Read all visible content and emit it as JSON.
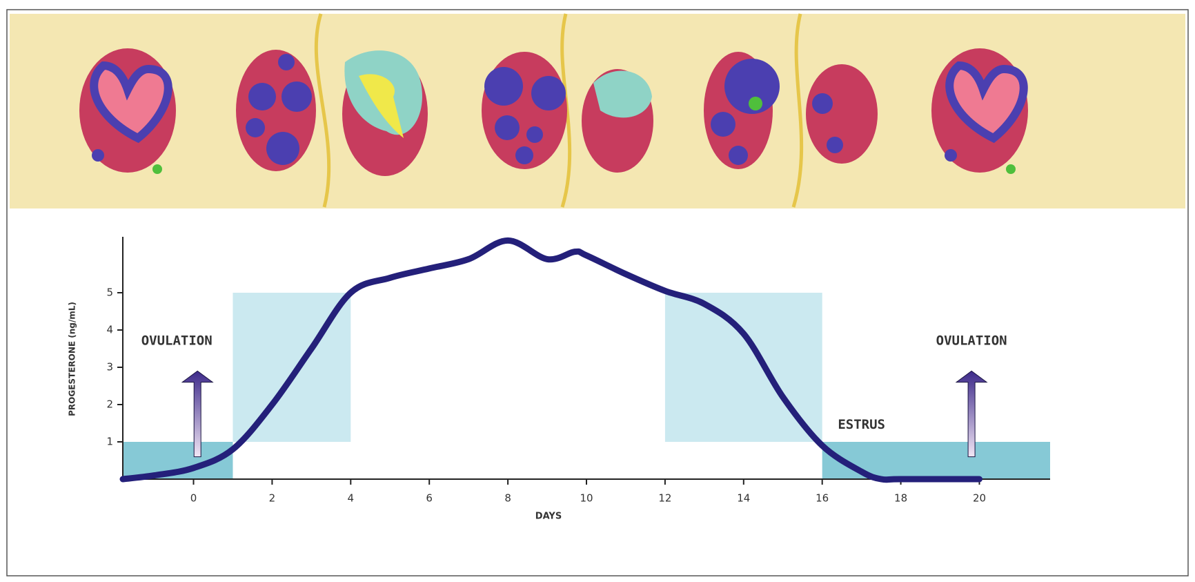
{
  "chart_data": {
    "type": "line",
    "x_label": "DAYS",
    "y_label": "PROGESTERONE (ng/mL)",
    "x": [
      -1.8,
      -1,
      0,
      1,
      2,
      3,
      4,
      5,
      6,
      7,
      8,
      9,
      9.7,
      10,
      11,
      12,
      13,
      14,
      15,
      16,
      17,
      17.5,
      18,
      20
    ],
    "series": [
      {
        "color": "#24207a",
        "values": [
          0,
          0.1,
          0.3,
          0.8,
          2,
          3.5,
          5,
          5.4,
          5.65,
          5.9,
          6.4,
          5.9,
          6.1,
          6,
          5.5,
          5.05,
          4.7,
          3.9,
          2.2,
          0.9,
          0.2,
          0,
          0,
          0
        ]
      }
    ],
    "xlim": [
      -1.8,
      21.8
    ],
    "ylim": [
      0,
      6.5
    ],
    "xticks": [
      0,
      2,
      4,
      6,
      8,
      10,
      12,
      14,
      16,
      18,
      20
    ],
    "yticks": [
      1,
      2,
      3,
      4,
      5
    ],
    "regions": [
      {
        "x": [
          -1.8,
          1
        ],
        "y": [
          0,
          1
        ],
        "color": "#86c9d6"
      },
      {
        "x": [
          1,
          4
        ],
        "y": [
          1,
          5
        ],
        "color": "#cbe9f0"
      },
      {
        "x": [
          12,
          16
        ],
        "y": [
          1,
          5
        ],
        "color": "#cbe9f0"
      },
      {
        "x": [
          16,
          21.8
        ],
        "y": [
          0,
          1
        ],
        "color": "#86c9d6"
      }
    ],
    "annotations": [
      {
        "text": "OVULATION",
        "x": 0.1
      },
      {
        "text": "OVULATION",
        "x": 19.8
      },
      {
        "text": "ESTRUS",
        "x": 17
      }
    ]
  }
}
